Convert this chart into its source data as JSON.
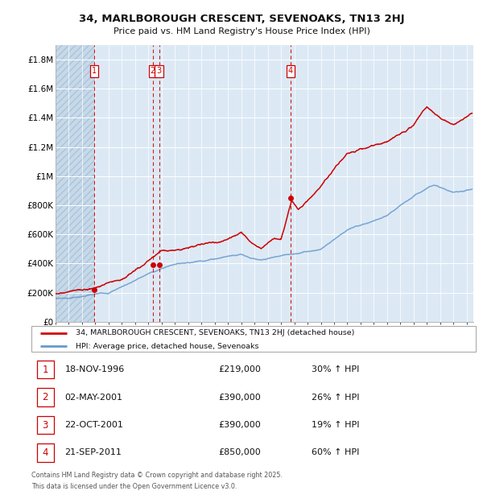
{
  "title_line1": "34, MARLBOROUGH CRESCENT, SEVENOAKS, TN13 2HJ",
  "title_line2": "Price paid vs. HM Land Registry's House Price Index (HPI)",
  "plot_bg_color": "#dce9f5",
  "grid_color": "#ffffff",
  "red_line_color": "#cc0000",
  "blue_line_color": "#6699cc",
  "dashed_line_color": "#cc0000",
  "sale_marker_color": "#cc0000",
  "ylim": [
    0,
    1900000
  ],
  "yticks": [
    0,
    200000,
    400000,
    600000,
    800000,
    1000000,
    1200000,
    1400000,
    1600000,
    1800000
  ],
  "ytick_labels": [
    "£0",
    "£200K",
    "£400K",
    "£600K",
    "£800K",
    "£1M",
    "£1.2M",
    "£1.4M",
    "£1.6M",
    "£1.8M"
  ],
  "xmin_year": 1994,
  "xmax_year": 2025.5,
  "xtick_years": [
    1994,
    1995,
    1996,
    1997,
    1998,
    1999,
    2000,
    2001,
    2002,
    2003,
    2004,
    2005,
    2006,
    2007,
    2008,
    2009,
    2010,
    2011,
    2012,
    2013,
    2014,
    2015,
    2016,
    2017,
    2018,
    2019,
    2020,
    2021,
    2022,
    2023,
    2024,
    2025
  ],
  "hatch_xmax": 1996.9,
  "sales": [
    {
      "num": 1,
      "year": 1996.9,
      "price": 219000,
      "label": "1",
      "date": "18-NOV-1996",
      "price_str": "£219,000",
      "hpi_pct": "30% ↑ HPI"
    },
    {
      "num": 2,
      "year": 2001.33,
      "price": 390000,
      "label": "2",
      "date": "02-MAY-2001",
      "price_str": "£390,000",
      "hpi_pct": "26% ↑ HPI"
    },
    {
      "num": 3,
      "year": 2001.8,
      "price": 390000,
      "label": "3",
      "date": "22-OCT-2001",
      "price_str": "£390,000",
      "hpi_pct": "19% ↑ HPI"
    },
    {
      "num": 4,
      "year": 2011.73,
      "price": 850000,
      "label": "4",
      "date": "21-SEP-2011",
      "price_str": "£850,000",
      "hpi_pct": "60% ↑ HPI"
    }
  ],
  "legend_label_red": "34, MARLBOROUGH CRESCENT, SEVENOAKS, TN13 2HJ (detached house)",
  "legend_label_blue": "HPI: Average price, detached house, Sevenoaks",
  "footer_line1": "Contains HM Land Registry data © Crown copyright and database right 2025.",
  "footer_line2": "This data is licensed under the Open Government Licence v3.0."
}
